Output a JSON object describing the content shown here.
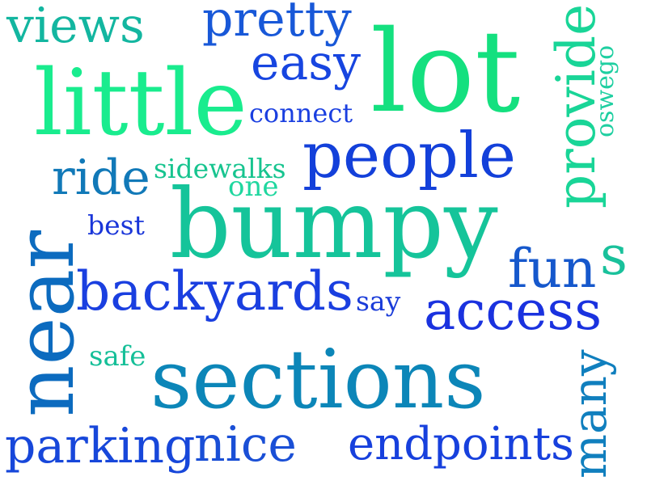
{
  "words": [
    {
      "key": "lot",
      "text": "lot",
      "color": "#14e07f"
    },
    {
      "key": "little",
      "text": "little",
      "color": "#19ec8e"
    },
    {
      "key": "bumpy",
      "text": "bumpy",
      "color": "#15c49a"
    },
    {
      "key": "sections",
      "text": "sections",
      "color": "#0c86b8"
    },
    {
      "key": "near",
      "text": "near",
      "color": "#0c6bbf"
    },
    {
      "key": "people",
      "text": "people",
      "color": "#1340da"
    },
    {
      "key": "backyards",
      "text": "backyards",
      "color": "#1a3fe0"
    },
    {
      "key": "pretty",
      "text": "pretty",
      "color": "#1858d8"
    },
    {
      "key": "views",
      "text": "views",
      "color": "#13b6a0"
    },
    {
      "key": "easy",
      "text": "easy",
      "color": "#1745e0"
    },
    {
      "key": "provide",
      "text": "provide",
      "color": "#19d597"
    },
    {
      "key": "oswego",
      "text": "oswego",
      "color": "#1fcfa1"
    },
    {
      "key": "connect",
      "text": "connect",
      "color": "#1a3fe0"
    },
    {
      "key": "ride",
      "text": "ride",
      "color": "#1179b8"
    },
    {
      "key": "sidewalks",
      "text": "sidewalks",
      "color": "#17c48f"
    },
    {
      "key": "one",
      "text": "one",
      "color": "#1fd79f"
    },
    {
      "key": "best",
      "text": "best",
      "color": "#1a36d9"
    },
    {
      "key": "fun",
      "text": "fun",
      "color": "#1658cc"
    },
    {
      "key": "s",
      "text": "s",
      "color": "#19c19b"
    },
    {
      "key": "access",
      "text": "access",
      "color": "#1a32df"
    },
    {
      "key": "say",
      "text": "say",
      "color": "#1a3cd9"
    },
    {
      "key": "safe",
      "text": "safe",
      "color": "#15bf98"
    },
    {
      "key": "many",
      "text": "many",
      "color": "#107fbe"
    },
    {
      "key": "parking",
      "text": "parking",
      "color": "#1747da"
    },
    {
      "key": "nice",
      "text": "nice",
      "color": "#1a4fd6"
    },
    {
      "key": "endpoints",
      "text": "endpoints",
      "color": "#1740dd"
    }
  ]
}
